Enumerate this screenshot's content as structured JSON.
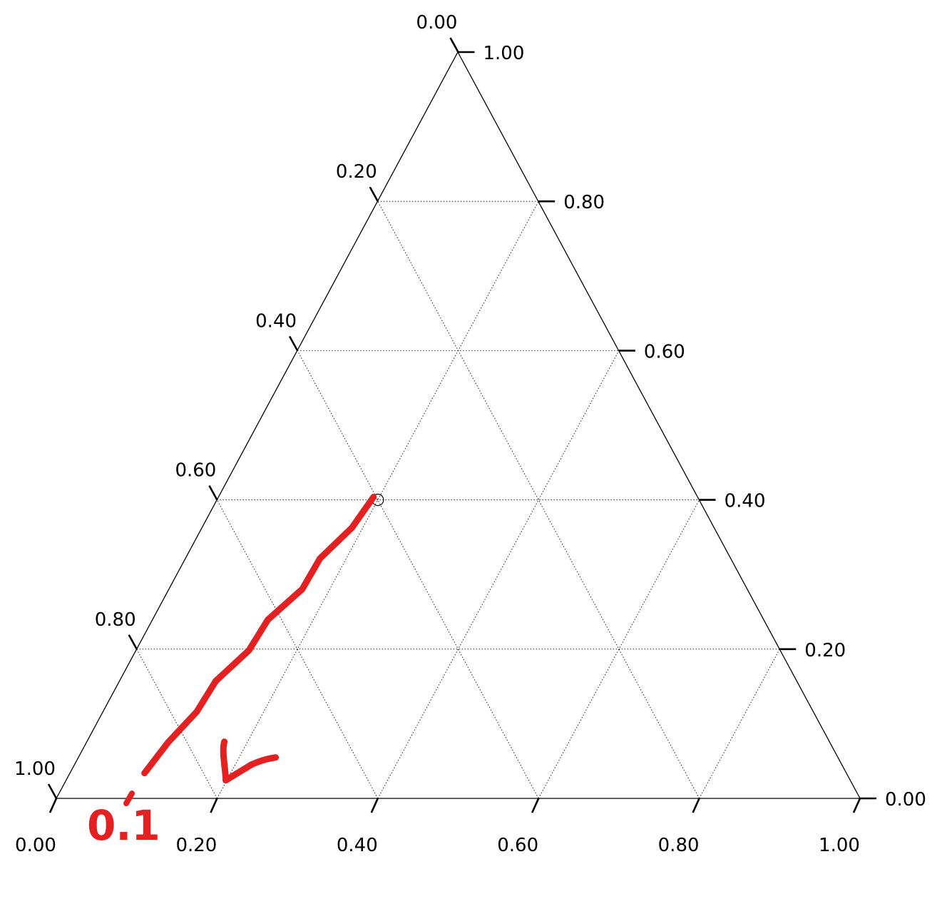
{
  "chart_data": {
    "type": "scatter",
    "projection": "ternary",
    "title": "",
    "axes": {
      "bottom": {
        "label": "",
        "range": [
          0,
          1
        ],
        "ticks": [
          0.0,
          0.2,
          0.4,
          0.6,
          0.8,
          1.0
        ],
        "tick_labels": [
          "0.00",
          "0.20",
          "0.40",
          "0.60",
          "0.80",
          "1.00"
        ]
      },
      "right": {
        "label": "",
        "range": [
          0,
          1
        ],
        "ticks": [
          0.0,
          0.2,
          0.4,
          0.6,
          0.8,
          1.0
        ],
        "tick_labels": [
          "0.00",
          "0.20",
          "0.40",
          "0.60",
          "0.80",
          "1.00"
        ]
      },
      "left": {
        "label": "",
        "range": [
          0,
          1
        ],
        "ticks": [
          0.0,
          0.2,
          0.4,
          0.6,
          0.8,
          1.0
        ],
        "tick_labels": [
          "0.00",
          "0.20",
          "0.40",
          "0.60",
          "0.80",
          "1.00"
        ]
      }
    },
    "grid": true,
    "grid_style": "dotted",
    "points": [
      {
        "bottom": 0.2,
        "right": 0.4,
        "left": 0.4
      }
    ],
    "annotation": {
      "text": "0.1",
      "color": "#e52020",
      "arrow_from": {
        "bottom": 0.2,
        "right": 0.4,
        "left": 0.4
      },
      "arrow_to": {
        "bottom": 0.1,
        "right": 0.03,
        "left": 0.87
      }
    }
  }
}
